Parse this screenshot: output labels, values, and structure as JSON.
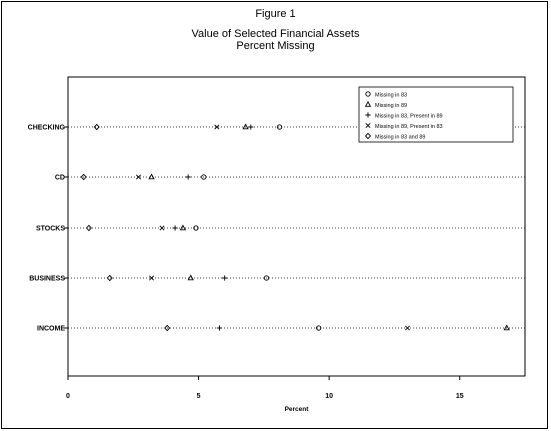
{
  "chart_data": {
    "type": "scatter",
    "title": "Figure 1",
    "subtitle": [
      "Value of Selected Financial Assets",
      "Percent Missing"
    ],
    "xlabel": "Percent",
    "ylabel": "",
    "xlim": [
      0,
      17.5
    ],
    "xticks": [
      "0",
      "5",
      "10",
      "15"
    ],
    "xtick_values": [
      0,
      5,
      10,
      15
    ],
    "categories": [
      "CHECKING",
      "CD",
      "STOCKS",
      "BUSINESS",
      "INCOME"
    ],
    "category_labels": [
      "CHECKING",
      "CD",
      "STOCKS",
      "BUSINESS",
      "INCOME"
    ],
    "grid": "dotted horizontal lines at each category",
    "legend_position": "top-right",
    "series": [
      {
        "name": "Missing in 83",
        "marker": "circle",
        "values": [
          8.1,
          5.2,
          4.9,
          7.6,
          9.6
        ]
      },
      {
        "name": "Missing in 89",
        "marker": "triangle",
        "values": [
          6.8,
          3.2,
          4.4,
          4.7,
          16.8
        ]
      },
      {
        "name": "Missing in 83, Present in 89",
        "marker": "plus",
        "values": [
          7.0,
          4.6,
          4.1,
          6.0,
          5.8
        ]
      },
      {
        "name": "Missing in 89, Present in 83",
        "marker": "cross",
        "values": [
          5.7,
          2.7,
          3.6,
          3.2,
          13.0
        ]
      },
      {
        "name": "Missing in 83 and 89",
        "marker": "diamond",
        "values": [
          1.1,
          0.6,
          0.8,
          1.6,
          3.8
        ]
      }
    ]
  }
}
